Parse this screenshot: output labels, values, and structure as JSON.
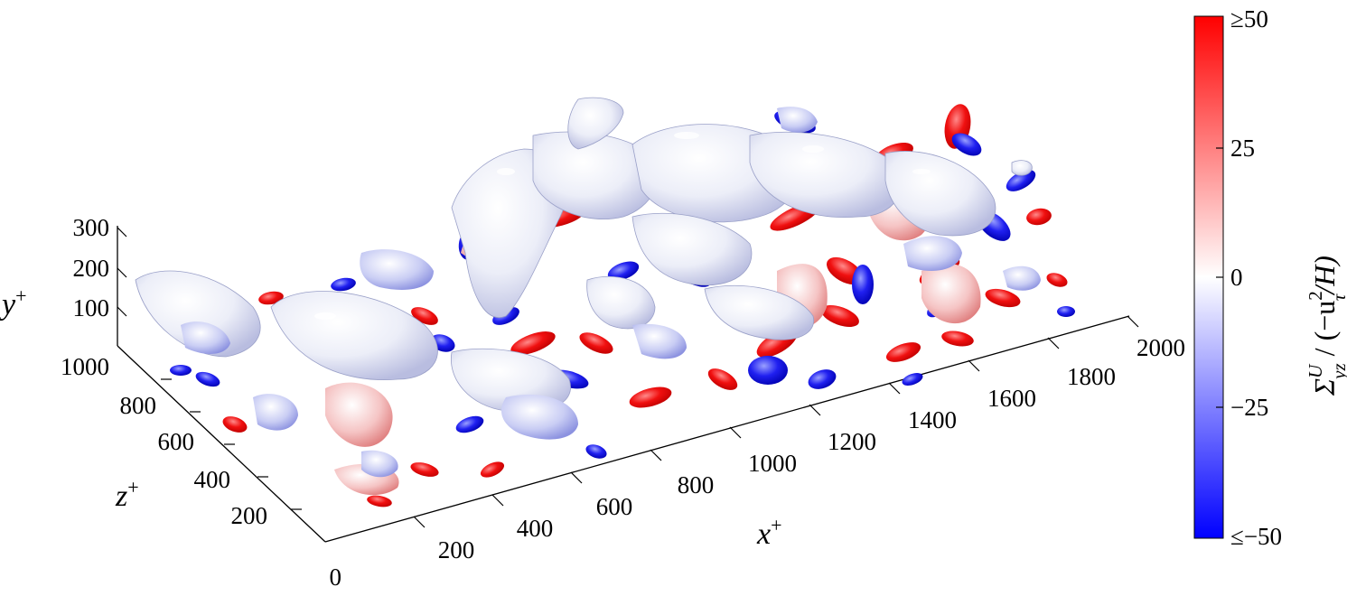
{
  "axes": {
    "x": {
      "label_main": "x",
      "label_sup": "+",
      "ticks": [
        "200",
        "400",
        "600",
        "800",
        "1000",
        "1200",
        "1400",
        "1600",
        "1800",
        "2000"
      ]
    },
    "z": {
      "label_main": "z",
      "label_sup": "+",
      "ticks": [
        "0",
        "200",
        "400",
        "600",
        "800",
        "1000"
      ]
    },
    "y": {
      "label_main": "y",
      "label_sup": "+",
      "ticks": [
        "100",
        "200",
        "300"
      ]
    }
  },
  "colorbar": {
    "tick_max": "≥50",
    "tick_25": "25",
    "tick_0": "0",
    "tick_m25": "−25",
    "tick_min": "≤−50",
    "label_sigma": "Σ",
    "label_sigma_sup": "U",
    "label_sigma_sub": "yz",
    "label_rest": " / (−u",
    "label_u_sup": "2",
    "label_u_sub": "τ",
    "label_end": "/H)",
    "colors": {
      "high": "#ff0000",
      "mid": "#ffffff",
      "low": "#0000ff"
    }
  }
}
